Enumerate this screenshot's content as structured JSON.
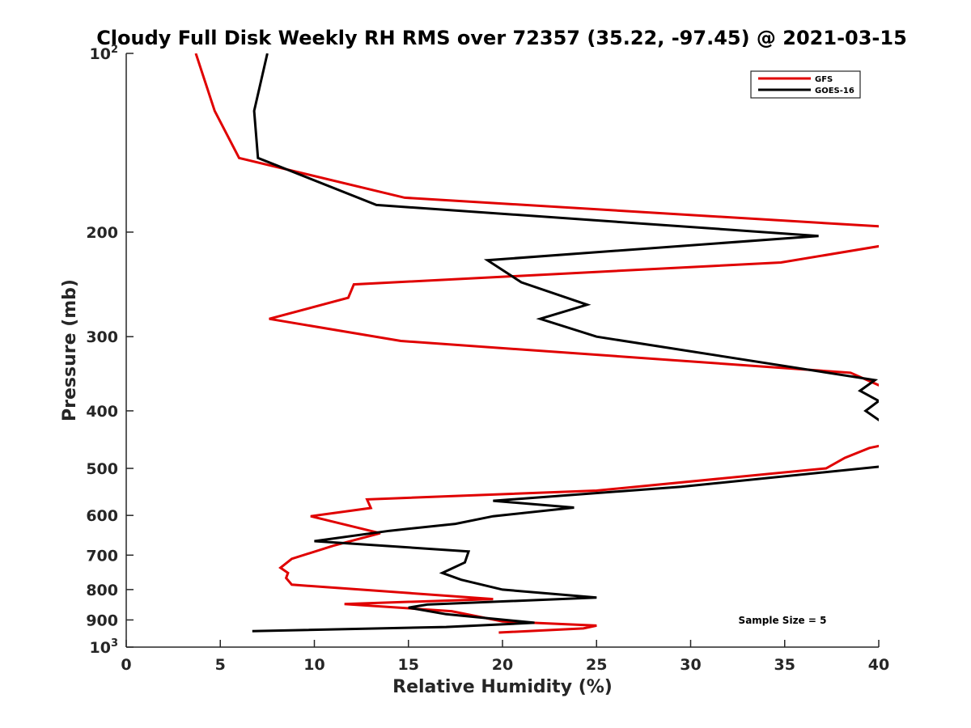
{
  "chart_data": {
    "type": "line",
    "title": "Cloudy Full Disk Weekly RH RMS over 72357 (35.22, -97.45) @ 2021-03-15",
    "xlabel": "Relative Humidity (%)",
    "ylabel": "Pressure (mb)",
    "xlim": [
      0,
      40
    ],
    "ylim": [
      100,
      1000
    ],
    "y_scale": "log",
    "y_reversed": true,
    "grid": false,
    "legend_position": "top-right",
    "x_ticks": [
      "0",
      "5",
      "10",
      "15",
      "20",
      "25",
      "30",
      "35",
      "40"
    ],
    "y_ticks": [
      {
        "value": 100,
        "base": "10",
        "exp": "2"
      },
      {
        "value": 200,
        "label": "200"
      },
      {
        "value": 300,
        "label": "300"
      },
      {
        "value": 400,
        "label": "400"
      },
      {
        "value": 500,
        "label": "500"
      },
      {
        "value": 600,
        "label": "600"
      },
      {
        "value": 700,
        "label": "700"
      },
      {
        "value": 800,
        "label": "800"
      },
      {
        "value": 900,
        "label": "900"
      },
      {
        "value": 1000,
        "base": "10",
        "exp": "3"
      }
    ],
    "annotation": "Sample Size = 5",
    "series": [
      {
        "name": "GFS",
        "color": "#e00000",
        "points": [
          [
            3.7,
            100
          ],
          [
            4.7,
            125
          ],
          [
            6.0,
            150
          ],
          [
            14.8,
            175
          ],
          [
            40.5,
            196
          ],
          [
            40.5,
            210
          ],
          [
            34.8,
            225
          ],
          [
            12.1,
            245
          ],
          [
            11.8,
            258
          ],
          [
            7.6,
            280
          ],
          [
            14.6,
            305
          ],
          [
            38.5,
            345
          ],
          [
            40.5,
            368
          ],
          [
            40.5,
            455
          ],
          [
            39.5,
            462
          ],
          [
            38.2,
            480
          ],
          [
            37.2,
            500
          ],
          [
            25.0,
            545
          ],
          [
            12.8,
            564
          ],
          [
            13.0,
            583
          ],
          [
            9.8,
            602
          ],
          [
            13.5,
            643
          ],
          [
            11.0,
            675
          ],
          [
            8.8,
            710
          ],
          [
            8.2,
            735
          ],
          [
            8.6,
            750
          ],
          [
            8.5,
            765
          ],
          [
            8.8,
            785
          ],
          [
            19.5,
            830
          ],
          [
            11.6,
            846
          ],
          [
            17.3,
            870
          ],
          [
            20.0,
            905
          ],
          [
            25.0,
            920
          ],
          [
            24.3,
            930
          ],
          [
            19.8,
            945
          ]
        ]
      },
      {
        "name": "GOES-16",
        "color": "#000000",
        "points": [
          [
            7.5,
            100
          ],
          [
            6.8,
            125
          ],
          [
            7.0,
            150
          ],
          [
            13.3,
            180
          ],
          [
            36.8,
            203
          ],
          [
            19.2,
            223
          ],
          [
            21.0,
            243
          ],
          [
            24.5,
            265
          ],
          [
            22.0,
            280
          ],
          [
            25.0,
            300
          ],
          [
            39.8,
            355
          ],
          [
            39.0,
            370
          ],
          [
            40.0,
            385
          ],
          [
            39.3,
            400
          ],
          [
            40.5,
            425
          ],
          [
            40.5,
            495
          ],
          [
            29.5,
            537
          ],
          [
            19.5,
            567
          ],
          [
            23.8,
            582
          ],
          [
            19.5,
            602
          ],
          [
            17.5,
            620
          ],
          [
            14.0,
            637
          ],
          [
            10.0,
            663
          ],
          [
            18.2,
            690
          ],
          [
            18.0,
            720
          ],
          [
            17.2,
            740
          ],
          [
            16.8,
            750
          ],
          [
            17.8,
            770
          ],
          [
            20.0,
            800
          ],
          [
            25.0,
            825
          ],
          [
            16.0,
            848
          ],
          [
            15.0,
            858
          ],
          [
            17.0,
            880
          ],
          [
            21.7,
            910
          ],
          [
            17.0,
            925
          ],
          [
            6.7,
            940
          ]
        ]
      }
    ]
  }
}
